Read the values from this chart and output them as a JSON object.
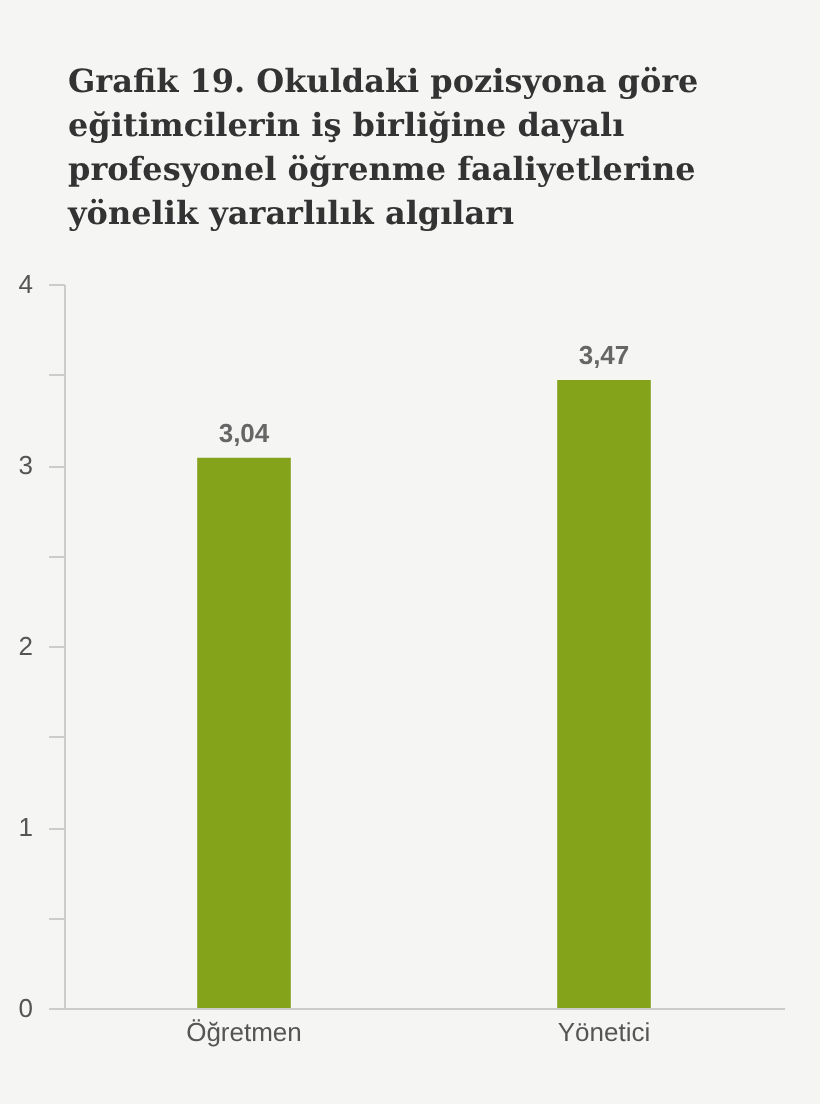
{
  "chart_data": {
    "type": "bar",
    "title": "Grafik 19. Okuldaki pozisyona göre eğitimcilerin iş birliğine dayalı profesyonel öğrenme faaliyetlerine yönelik yararlılık algıları",
    "categories": [
      "Öğretmen",
      "Yönetici"
    ],
    "values": [
      3.04,
      3.47
    ],
    "color": "#84a21a",
    "ylim": [
      0,
      4
    ],
    "yticks": [
      0,
      {
        "value": 0.5,
        "label": null
      },
      1,
      {
        "value": 1.5,
        "label": null
      },
      2,
      {
        "value": 2.5,
        "label": null
      },
      3,
      {
        "value": 3.5,
        "label": null
      },
      4
    ],
    "value_labels": [
      "3,04",
      "3,47"
    ],
    "grid": false
  }
}
